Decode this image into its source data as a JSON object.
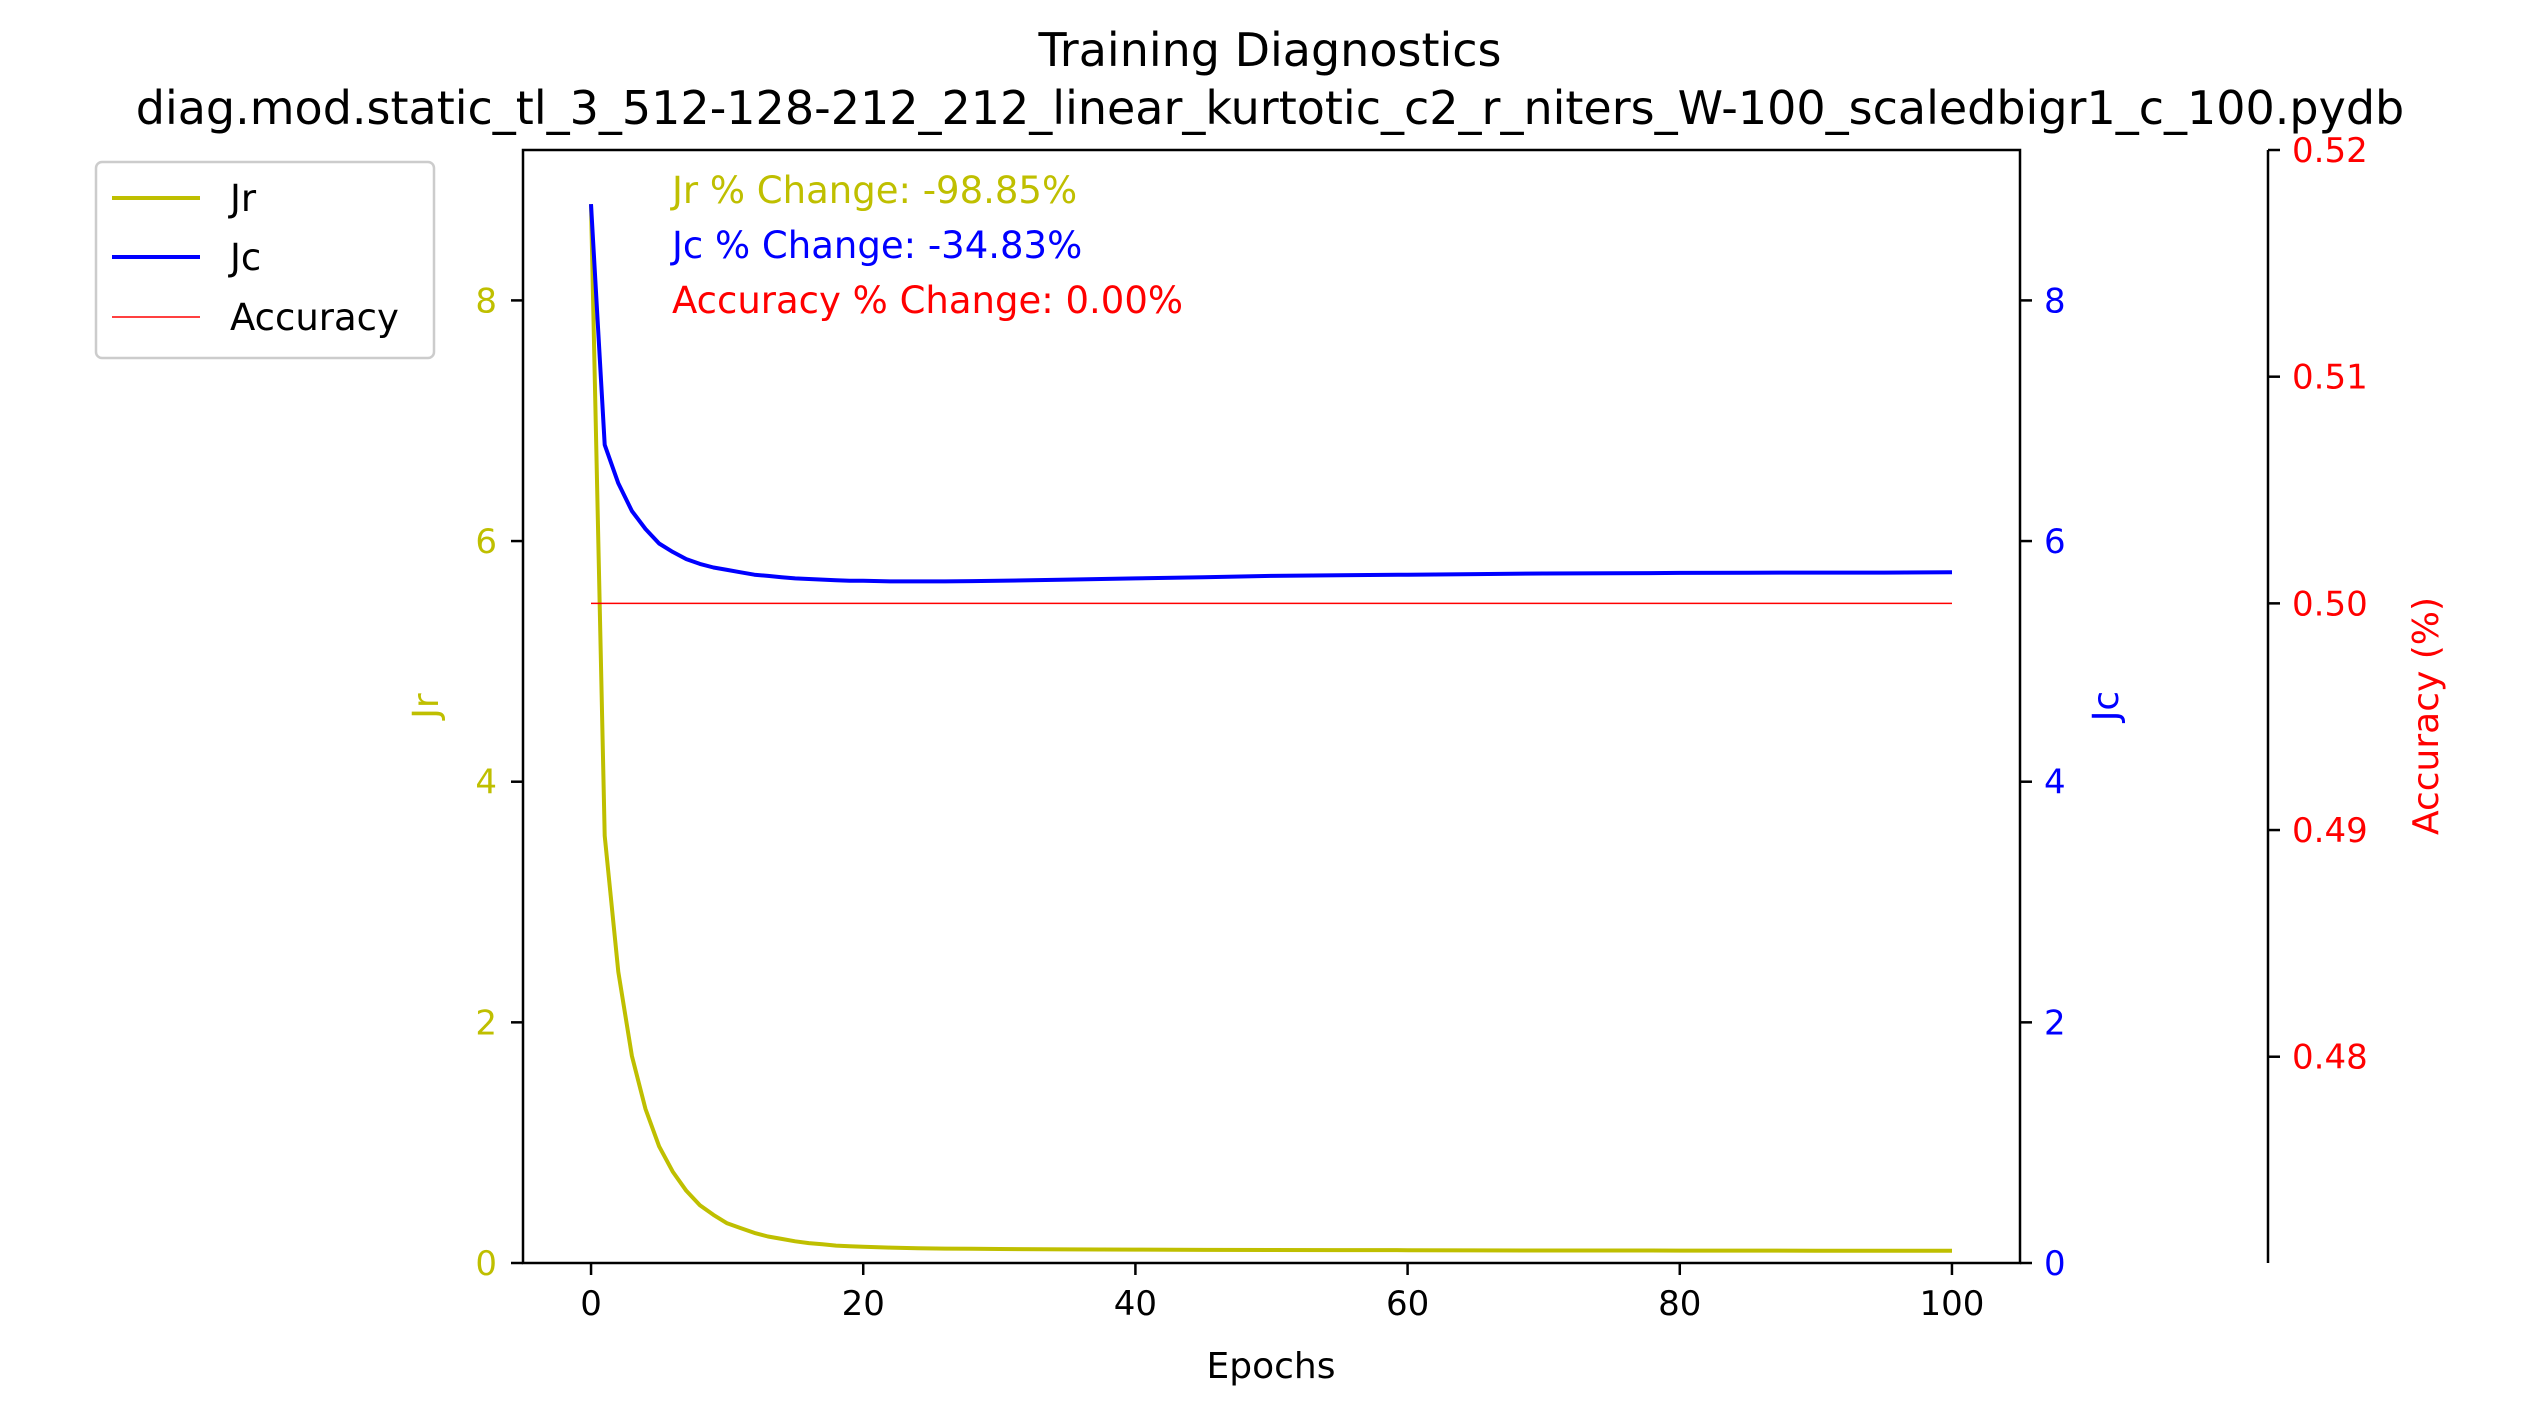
{
  "chart_data": {
    "type": "line",
    "title": "Training Diagnostics",
    "subtitle": "diag.mod.static_tl_3_512-128-212_212_linear_kurtotic_c2_r_niters_W-100_scaledbigr1_c_100.pydb",
    "xlabel": "Epochs",
    "xlim": [
      -5,
      105
    ],
    "xticks": [
      0,
      20,
      40,
      60,
      80,
      100
    ],
    "axes": {
      "left": {
        "label": "Jr",
        "color": "#bfbf00",
        "lim": [
          0,
          9.25
        ],
        "ticks": [
          0,
          2,
          4,
          6,
          8
        ]
      },
      "right": {
        "label": "Jc",
        "color": "#0000ff",
        "lim": [
          0,
          9.25
        ],
        "ticks": [
          0,
          2,
          4,
          6,
          8
        ]
      },
      "right2": {
        "label": "Accuracy (%)",
        "color": "#ff0000",
        "lim": [
          0.4709,
          0.52
        ],
        "ticks": [
          0.48,
          0.49,
          0.5,
          0.51,
          0.52
        ],
        "tick_labels": [
          "0.48",
          "0.49",
          "0.50",
          "0.51",
          "0.52"
        ]
      }
    },
    "series": [
      {
        "name": "Jr",
        "axis": "left",
        "color": "#bfbf00",
        "width": 4,
        "x": [
          0,
          1,
          2,
          3,
          4,
          5,
          6,
          7,
          8,
          9,
          10,
          11,
          12,
          13,
          14,
          15,
          16,
          17,
          18,
          19,
          20,
          22,
          24,
          26,
          28,
          30,
          35,
          40,
          45,
          50,
          55,
          60,
          65,
          70,
          75,
          80,
          85,
          90,
          95,
          100
        ],
        "y": [
          8.8,
          3.55,
          2.42,
          1.72,
          1.28,
          0.97,
          0.76,
          0.6,
          0.48,
          0.4,
          0.33,
          0.29,
          0.25,
          0.22,
          0.2,
          0.18,
          0.165,
          0.155,
          0.145,
          0.14,
          0.135,
          0.128,
          0.123,
          0.12,
          0.118,
          0.116,
          0.113,
          0.111,
          0.109,
          0.108,
          0.107,
          0.106,
          0.105,
          0.104,
          0.104,
          0.103,
          0.103,
          0.102,
          0.102,
          0.101
        ]
      },
      {
        "name": "Jc",
        "axis": "right",
        "color": "#0000ff",
        "width": 4,
        "x": [
          0,
          1,
          2,
          3,
          4,
          5,
          6,
          7,
          8,
          9,
          10,
          11,
          12,
          13,
          14,
          15,
          16,
          17,
          18,
          19,
          20,
          22,
          24,
          26,
          28,
          30,
          35,
          40,
          45,
          50,
          55,
          60,
          65,
          70,
          75,
          80,
          85,
          90,
          95,
          100
        ],
        "y": [
          8.8,
          6.8,
          6.48,
          6.25,
          6.1,
          5.98,
          5.91,
          5.85,
          5.81,
          5.78,
          5.76,
          5.74,
          5.72,
          5.71,
          5.7,
          5.69,
          5.685,
          5.68,
          5.675,
          5.67,
          5.67,
          5.665,
          5.665,
          5.665,
          5.667,
          5.67,
          5.68,
          5.69,
          5.7,
          5.71,
          5.715,
          5.72,
          5.725,
          5.73,
          5.732,
          5.735,
          5.737,
          5.738,
          5.738,
          5.74
        ]
      },
      {
        "name": "Accuracy",
        "axis": "right2",
        "color": "#ff0000",
        "width": 1.5,
        "x": [
          0,
          100
        ],
        "y": [
          0.5,
          0.5
        ]
      }
    ],
    "annotations": [
      {
        "text": "Jr % Change: -98.85%",
        "color": "#bfbf00"
      },
      {
        "text": "Jc % Change: -34.83%",
        "color": "#0000ff"
      },
      {
        "text": "Accuracy % Change: 0.00%",
        "color": "#ff0000"
      }
    ],
    "legend": {
      "position": "outside-top-left",
      "entries": [
        {
          "label": "Jr",
          "color": "#bfbf00"
        },
        {
          "label": "Jc",
          "color": "#0000ff"
        },
        {
          "label": "Accuracy",
          "color": "#ff0000"
        }
      ]
    },
    "grid": false
  }
}
